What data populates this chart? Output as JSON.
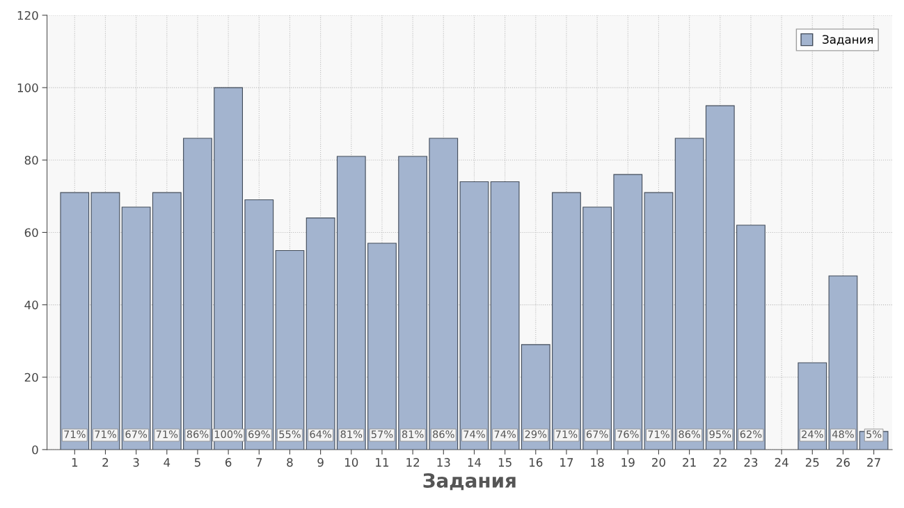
{
  "chart_data": {
    "type": "bar",
    "xlabel": "Задания",
    "categories": [
      "1",
      "2",
      "3",
      "4",
      "5",
      "6",
      "7",
      "8",
      "9",
      "10",
      "11",
      "12",
      "13",
      "14",
      "15",
      "16",
      "17",
      "18",
      "19",
      "20",
      "21",
      "22",
      "23",
      "24",
      "25",
      "26",
      "27"
    ],
    "series": [
      {
        "name": "Задания",
        "color": "#a3b4cf",
        "values": [
          71,
          71,
          67,
          71,
          86,
          100,
          69,
          55,
          64,
          81,
          57,
          81,
          86,
          74,
          74,
          29,
          71,
          67,
          76,
          71,
          86,
          95,
          62,
          null,
          24,
          48,
          5
        ],
        "value_labels": [
          "71%",
          "71%",
          "67%",
          "71%",
          "86%",
          "100%",
          "69%",
          "55%",
          "64%",
          "81%",
          "57%",
          "81%",
          "86%",
          "74%",
          "74%",
          "29%",
          "71%",
          "67%",
          "76%",
          "71%",
          "86%",
          "95%",
          "62%",
          null,
          "24%",
          "48%",
          "5%"
        ]
      }
    ],
    "ylim": [
      0,
      120
    ],
    "yticks": [
      0,
      20,
      40,
      60,
      80,
      100,
      120
    ],
    "grid": true,
    "legend": "top right"
  }
}
